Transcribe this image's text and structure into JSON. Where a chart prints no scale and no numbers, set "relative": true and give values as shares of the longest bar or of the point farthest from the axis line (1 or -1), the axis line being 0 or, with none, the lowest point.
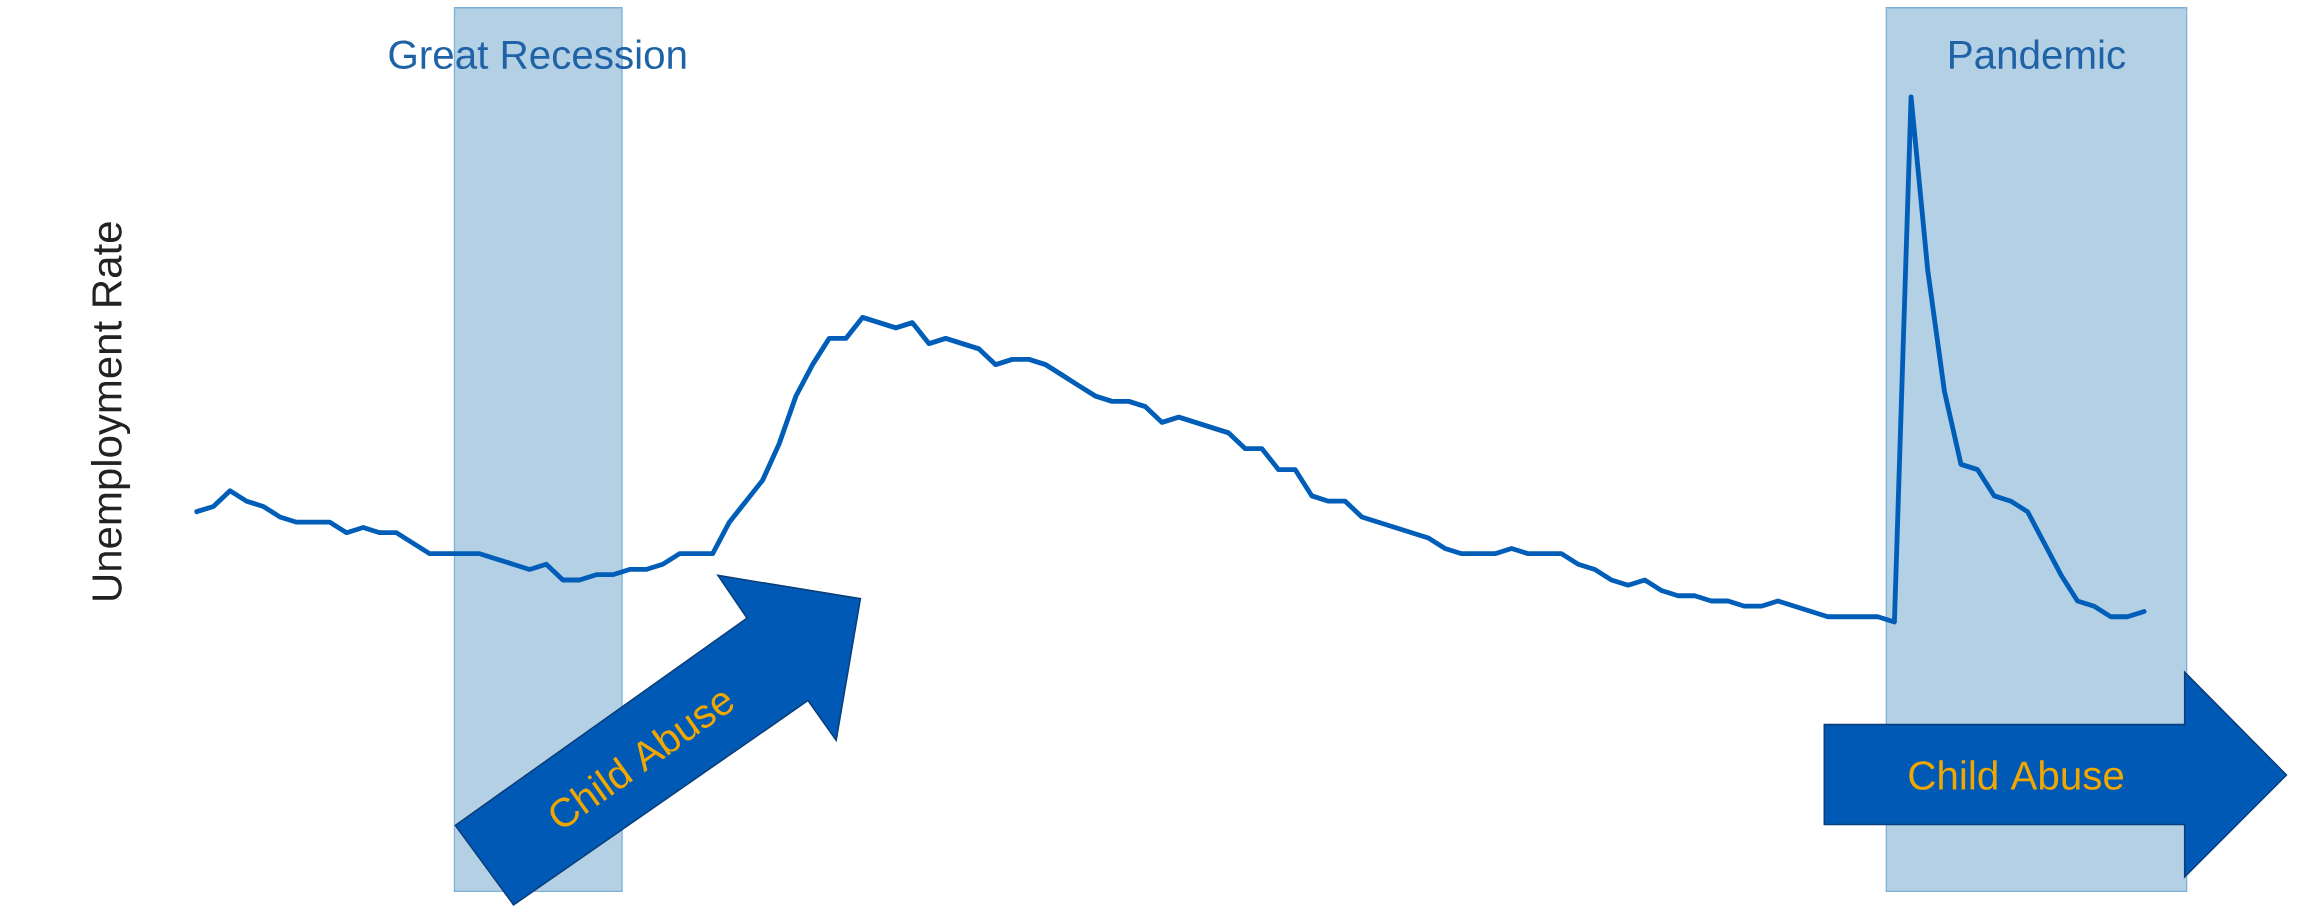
{
  "chart_data": {
    "type": "line",
    "ylabel": "Unemployment Rate",
    "relative": true,
    "color": "#005eb8",
    "categories": [
      null,
      null,
      null,
      null,
      null,
      null,
      null,
      null,
      null,
      null,
      null,
      null,
      null,
      null,
      null,
      null,
      null,
      null,
      null,
      null,
      null,
      null,
      null,
      null,
      null,
      null,
      null,
      null,
      null,
      null,
      null,
      null,
      null,
      null,
      null,
      null,
      null,
      null,
      null,
      null,
      null,
      null,
      null,
      null,
      null,
      null,
      null,
      null,
      null,
      null,
      null,
      null,
      null,
      null,
      null,
      null,
      null,
      null,
      null,
      null,
      null,
      null,
      null,
      null,
      null,
      null,
      null,
      null,
      null,
      null,
      null,
      null,
      null,
      null,
      null,
      null,
      null,
      null,
      null,
      null,
      null,
      null,
      null,
      null,
      null,
      null,
      null,
      null,
      null,
      null,
      null,
      null,
      null,
      null,
      null,
      null,
      null,
      null,
      null,
      null,
      null,
      null,
      null,
      null,
      null,
      null,
      null,
      null,
      null,
      null,
      null,
      null,
      null,
      null,
      null,
      null,
      null,
      null
    ],
    "values": [
      0.21,
      0.22,
      0.25,
      0.23,
      0.22,
      0.2,
      0.19,
      0.19,
      0.19,
      0.17,
      0.18,
      0.17,
      0.17,
      0.15,
      0.13,
      0.13,
      0.13,
      0.13,
      0.12,
      0.11,
      0.1,
      0.11,
      0.08,
      0.08,
      0.09,
      0.09,
      0.1,
      0.1,
      0.11,
      0.13,
      0.13,
      0.13,
      0.19,
      0.23,
      0.27,
      0.34,
      0.43,
      0.49,
      0.54,
      0.54,
      0.58,
      0.57,
      0.56,
      0.57,
      0.53,
      0.54,
      0.53,
      0.52,
      0.49,
      0.5,
      0.5,
      0.49,
      0.47,
      0.45,
      0.43,
      0.42,
      0.42,
      0.41,
      0.38,
      0.39,
      0.38,
      0.37,
      0.36,
      0.33,
      0.33,
      0.29,
      0.29,
      0.24,
      0.23,
      0.23,
      0.2,
      0.19,
      0.18,
      0.17,
      0.16,
      0.14,
      0.13,
      0.13,
      0.13,
      0.14,
      0.13,
      0.13,
      0.13,
      0.11,
      0.1,
      0.08,
      0.07,
      0.08,
      0.06,
      0.05,
      0.05,
      0.04,
      0.04,
      0.03,
      0.03,
      0.04,
      0.03,
      0.02,
      0.01,
      0.01,
      0.01,
      0.01,
      0,
      1,
      0.67,
      0.44,
      0.3,
      0.29,
      0.24,
      0.23,
      0.21,
      0.15,
      0.09,
      0.04,
      0.03,
      0.01,
      0.01,
      0.02
    ],
    "annotations": [
      "Great Recession",
      "Pandemic",
      "Child Abuse",
      "Child Abuse"
    ]
  }
}
